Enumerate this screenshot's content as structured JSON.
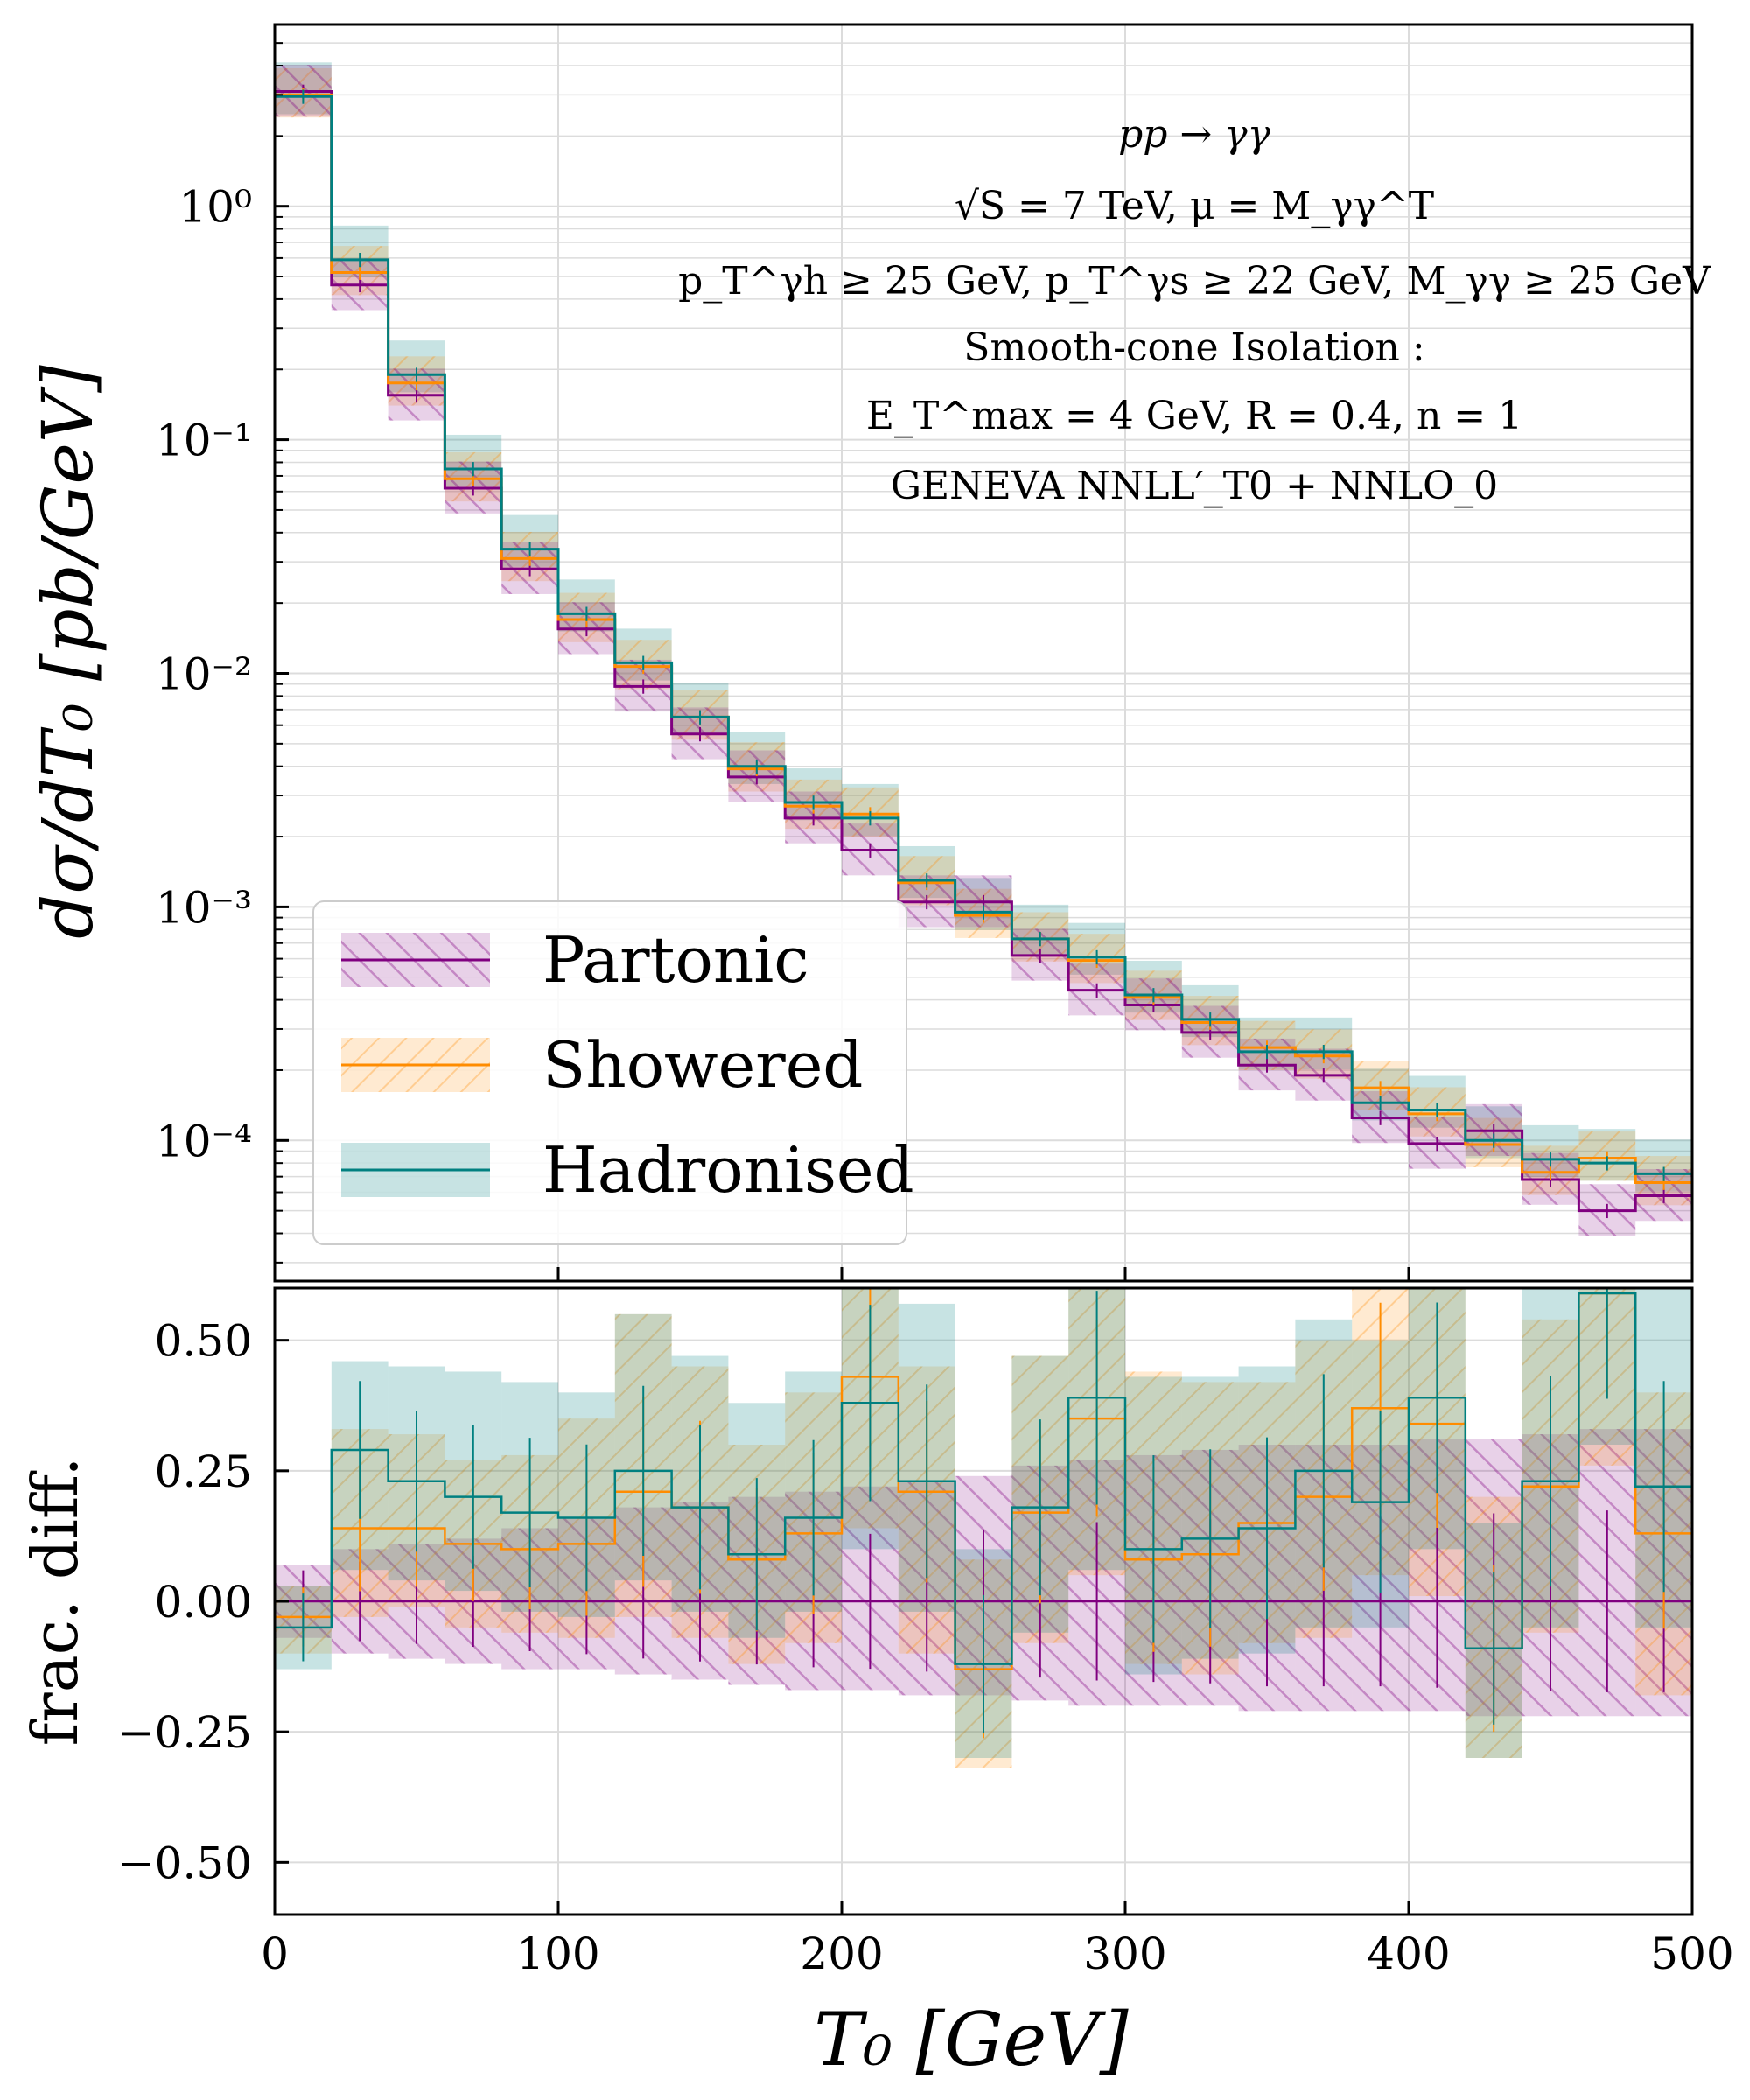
{
  "chart_data": [
    {
      "type": "line",
      "title": "pp → γγ",
      "annotations": [
        "pp → γγ",
        "√S = 7 TeV, μ = M_γγ^T",
        "p_T^γh ≥ 25 GeV,  p_T^γs ≥ 22 GeV,  M_γγ ≥ 25 GeV",
        "Smooth-cone Isolation :",
        "E_T^max = 4 GeV,  R = 0.4,  n = 1",
        "GENEVA   NNLL′_T0 + NNLO_0"
      ],
      "xlabel": "T₀   [GeV]",
      "ylabel": "dσ/dT₀   [pb/GeV]",
      "yscale": "log",
      "xlim": [
        0,
        500
      ],
      "ylim": [
        2.5e-05,
        6
      ],
      "x_ticks": [
        "0",
        "100",
        "200",
        "300",
        "400",
        "500"
      ],
      "y_ticks": [
        "10⁰",
        "10⁻¹",
        "10⁻²",
        "10⁻³",
        "10⁻⁴"
      ],
      "bin_edges": [
        0,
        20,
        40,
        60,
        80,
        100,
        120,
        140,
        160,
        180,
        200,
        220,
        240,
        260,
        280,
        300,
        320,
        340,
        360,
        380,
        400,
        420,
        440,
        460,
        480,
        500
      ],
      "legend": {
        "position": "lower-left",
        "entries": [
          "Partonic",
          "Showered",
          "Hadronised"
        ]
      },
      "series": [
        {
          "name": "Partonic",
          "color": "#800080",
          "values": [
            3.1,
            0.46,
            0.155,
            0.062,
            0.028,
            0.0155,
            0.0088,
            0.0055,
            0.0036,
            0.0024,
            0.00175,
            0.00105,
            0.00105,
            0.00062,
            0.00044,
            0.00038,
            0.00029,
            0.00021,
            0.00019,
            0.000125,
            9.7e-05,
            0.00011,
            6.8e-05,
            5e-05,
            5.8e-05
          ]
        },
        {
          "name": "Showered",
          "color": "#ff8c00",
          "values": [
            3.0,
            0.52,
            0.175,
            0.068,
            0.031,
            0.017,
            0.0107,
            0.0065,
            0.0039,
            0.0027,
            0.0025,
            0.00127,
            0.00092,
            0.00073,
            0.00059,
            0.00041,
            0.00032,
            0.00025,
            0.00023,
            0.000168,
            0.00013,
            9.6e-05,
            7.3e-05,
            8.4e-05,
            6.6e-05
          ]
        },
        {
          "name": "Hadronised",
          "color": "#008080",
          "values": [
            2.95,
            0.59,
            0.19,
            0.075,
            0.034,
            0.018,
            0.0111,
            0.0065,
            0.004,
            0.0028,
            0.0024,
            0.0013,
            0.00095,
            0.00073,
            0.00061,
            0.00042,
            0.00033,
            0.00024,
            0.00024,
            0.000145,
            0.000135,
            0.0001,
            8.3e-05,
            8e-05,
            7.2e-05
          ]
        }
      ]
    },
    {
      "type": "line",
      "xlabel": "T₀   [GeV]",
      "ylabel": "frac.  diff.",
      "xlim": [
        0,
        500
      ],
      "ylim": [
        -0.6,
        0.6
      ],
      "x_ticks": [
        "0",
        "100",
        "200",
        "300",
        "400",
        "500"
      ],
      "y_ticks": [
        "0.50",
        "0.25",
        "0.00",
        "−0.25",
        "−0.50"
      ],
      "bin_edges": [
        0,
        20,
        40,
        60,
        80,
        100,
        120,
        140,
        160,
        180,
        200,
        220,
        240,
        260,
        280,
        300,
        320,
        340,
        360,
        380,
        400,
        420,
        440,
        460,
        480,
        500
      ],
      "series": [
        {
          "name": "Partonic",
          "color": "#800080",
          "values": [
            0,
            0,
            0,
            0,
            0,
            0,
            0,
            0,
            0,
            0,
            0,
            0,
            0,
            0,
            0,
            0,
            0,
            0,
            0,
            0,
            0,
            0,
            0,
            0,
            0
          ],
          "band_low": [
            -0.07,
            -0.1,
            -0.11,
            -0.12,
            -0.13,
            -0.13,
            -0.14,
            -0.15,
            -0.16,
            -0.17,
            -0.17,
            -0.18,
            -0.18,
            -0.19,
            -0.2,
            -0.2,
            -0.2,
            -0.21,
            -0.21,
            -0.21,
            -0.21,
            -0.22,
            -0.22,
            -0.22,
            -0.22
          ],
          "band_high": [
            0.07,
            0.1,
            0.11,
            0.12,
            0.14,
            0.16,
            0.18,
            0.19,
            0.2,
            0.21,
            0.22,
            0.23,
            0.24,
            0.26,
            0.27,
            0.28,
            0.29,
            0.3,
            0.3,
            0.3,
            0.31,
            0.31,
            0.32,
            0.33,
            0.33
          ]
        },
        {
          "name": "Showered",
          "color": "#ff8c00",
          "values": [
            -0.03,
            0.14,
            0.14,
            0.11,
            0.1,
            0.11,
            0.21,
            0.18,
            0.08,
            0.13,
            0.43,
            0.21,
            -0.13,
            0.17,
            0.35,
            0.08,
            0.09,
            0.15,
            0.2,
            0.37,
            0.34,
            -0.09,
            0.22,
            0.59,
            0.13
          ],
          "band_low": [
            -0.1,
            -0.03,
            -0.01,
            -0.05,
            -0.06,
            -0.07,
            -0.03,
            -0.07,
            -0.12,
            -0.08,
            0.14,
            -0.1,
            -0.32,
            -0.08,
            0.05,
            -0.12,
            -0.14,
            -0.08,
            -0.07,
            0.05,
            0.01,
            -0.3,
            -0.06,
            0.26,
            -0.18
          ],
          "band_high": [
            0.03,
            0.33,
            0.32,
            0.27,
            0.28,
            0.35,
            0.55,
            0.45,
            0.3,
            0.4,
            0.68,
            0.45,
            0.08,
            0.47,
            0.65,
            0.44,
            0.42,
            0.42,
            0.5,
            0.7,
            0.65,
            0.2,
            0.54,
            0.9,
            0.4
          ]
        },
        {
          "name": "Hadronised",
          "color": "#008080",
          "values": [
            -0.05,
            0.29,
            0.23,
            0.2,
            0.17,
            0.16,
            0.25,
            0.18,
            0.09,
            0.16,
            0.38,
            0.23,
            -0.12,
            0.18,
            0.39,
            0.1,
            0.12,
            0.14,
            0.25,
            0.19,
            0.39,
            -0.09,
            0.23,
            0.59,
            0.22
          ],
          "band_low": [
            -0.13,
            0.06,
            0.04,
            0.02,
            -0.02,
            -0.03,
            0.04,
            -0.02,
            -0.07,
            -0.02,
            0.1,
            -0.02,
            -0.3,
            -0.06,
            0.06,
            -0.14,
            -0.11,
            -0.1,
            -0.05,
            -0.05,
            0.1,
            -0.3,
            -0.05,
            0.3,
            -0.05
          ],
          "band_high": [
            0.03,
            0.46,
            0.45,
            0.44,
            0.42,
            0.4,
            0.55,
            0.47,
            0.38,
            0.44,
            0.7,
            0.57,
            0.1,
            0.47,
            0.72,
            0.43,
            0.43,
            0.45,
            0.54,
            0.5,
            0.68,
            0.15,
            0.6,
            0.95,
            0.6
          ]
        }
      ]
    }
  ]
}
